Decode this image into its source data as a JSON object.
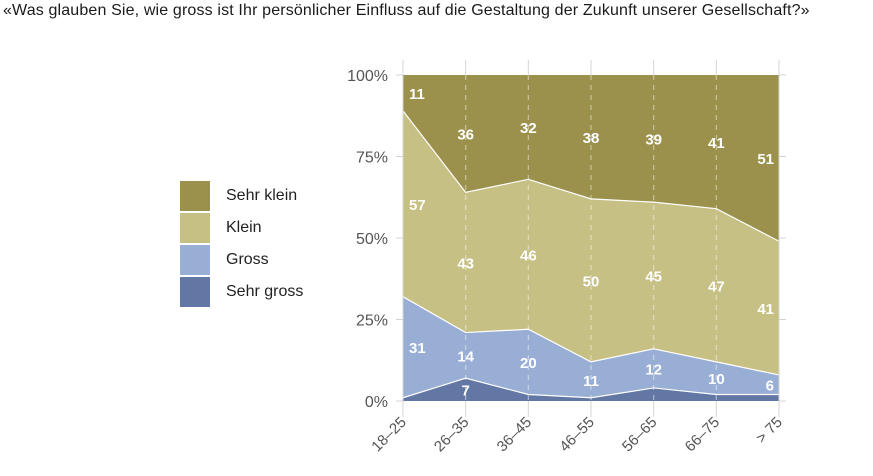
{
  "chart_data": {
    "type": "area",
    "stacked": true,
    "normalized": true,
    "title": "«Was glauben Sie, wie gross ist Ihr persönlicher Einfluss auf die Gestaltung der Zukunft unserer Gesellschaft?»",
    "xlabel": "",
    "ylabel": "",
    "categories": [
      "18–25",
      "26–35",
      "36–45",
      "46–55",
      "56–65",
      "66–75",
      "> 75"
    ],
    "ylim": [
      0,
      100
    ],
    "yticks": [
      0,
      25,
      50,
      75,
      100
    ],
    "ytick_labels": [
      "0%",
      "25%",
      "50%",
      "75%",
      "100%"
    ],
    "grid": "vertical dashed",
    "legend_position": "left",
    "series": [
      {
        "name": "Sehr gross",
        "color": "#6277A4",
        "values": [
          1,
          7,
          2,
          1,
          4,
          2,
          2
        ],
        "labels": [
          null,
          "7",
          null,
          null,
          null,
          null,
          null
        ]
      },
      {
        "name": "Gross",
        "color": "#98AED5",
        "values": [
          31,
          14,
          20,
          11,
          12,
          10,
          6
        ],
        "labels": [
          "31",
          "14",
          "20",
          "11",
          "12",
          "10",
          "6"
        ]
      },
      {
        "name": "Klein",
        "color": "#C7C085",
        "values": [
          57,
          43,
          46,
          50,
          45,
          47,
          41
        ],
        "labels": [
          "57",
          "43",
          "46",
          "50",
          "45",
          "47",
          "41"
        ]
      },
      {
        "name": "Sehr klein",
        "color": "#9B914D",
        "values": [
          11,
          36,
          32,
          38,
          39,
          41,
          51
        ],
        "labels": [
          "11",
          "36",
          "32",
          "38",
          "39",
          "41",
          "51"
        ]
      }
    ]
  },
  "legend": {
    "items": [
      {
        "label": "Sehr klein",
        "color": "#9B914D"
      },
      {
        "label": "Klein",
        "color": "#C7C085"
      },
      {
        "label": "Gross",
        "color": "#98AED5"
      },
      {
        "label": "Sehr gross",
        "color": "#6277A4"
      }
    ]
  }
}
